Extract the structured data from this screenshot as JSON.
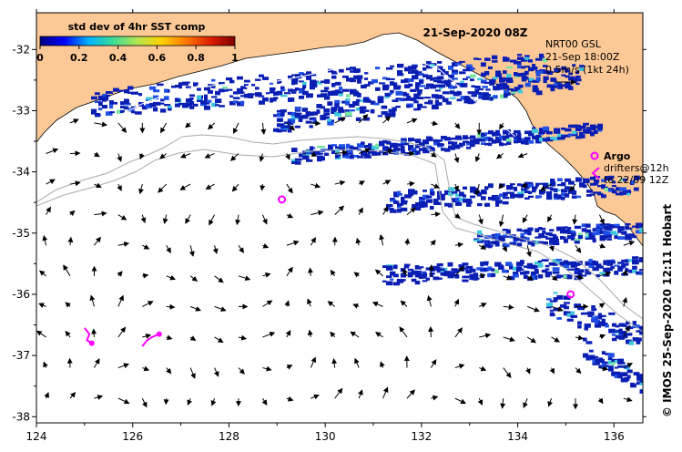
{
  "chart_data": {
    "type": "map",
    "title": "21-Sep-2020 08Z",
    "colorbar": {
      "label": "std dev of 4hr SST comp",
      "ticks": [
        "0",
        "0.2",
        "0.4",
        "0.6",
        "0.8",
        "1"
      ],
      "range": [
        0,
        1
      ],
      "colors": [
        "#000080",
        "#0000ff",
        "#00b4ff",
        "#3cdc96",
        "#b4e650",
        "#ffd200",
        "#ff7800",
        "#dc1e00",
        "#800000"
      ]
    },
    "x_ticks": [
      "124",
      "126",
      "128",
      "130",
      "132",
      "134",
      "136"
    ],
    "y_ticks": [
      "-32",
      "-33",
      "-34",
      "-35",
      "-36",
      "-37",
      "-38"
    ],
    "xlim": [
      124,
      136.6
    ],
    "ylim": [
      -38.1,
      -31.4
    ],
    "current_legend": {
      "lines": [
        "NRT00 GSL",
        "21-Sep 18:00Z",
        "0.5m/s (1kt 24h)"
      ]
    },
    "argo": {
      "label": "Argo",
      "position": [
        135.5,
        -33.6
      ]
    },
    "drifters": {
      "lines": [
        "drifters@12h",
        "to 22/09 12Z"
      ]
    },
    "argo_floats": [
      [
        129.1,
        -34.45
      ],
      [
        135.1,
        -36.0
      ]
    ],
    "drifter_tracks": [
      [
        [
          125.0,
          -36.55
        ],
        [
          125.1,
          -36.65
        ],
        [
          125.05,
          -36.75
        ],
        [
          125.15,
          -36.8
        ]
      ],
      [
        [
          126.2,
          -36.85
        ],
        [
          126.3,
          -36.75
        ],
        [
          126.4,
          -36.7
        ],
        [
          126.55,
          -36.65
        ]
      ]
    ],
    "credit": "© IMOS 25-Sep-2020 12:11 Hobart",
    "colors": {
      "land": "#fcc896",
      "swath": "#0a1eb4",
      "marker": "#ff00ff",
      "bathy": "#aaaaaa"
    }
  }
}
